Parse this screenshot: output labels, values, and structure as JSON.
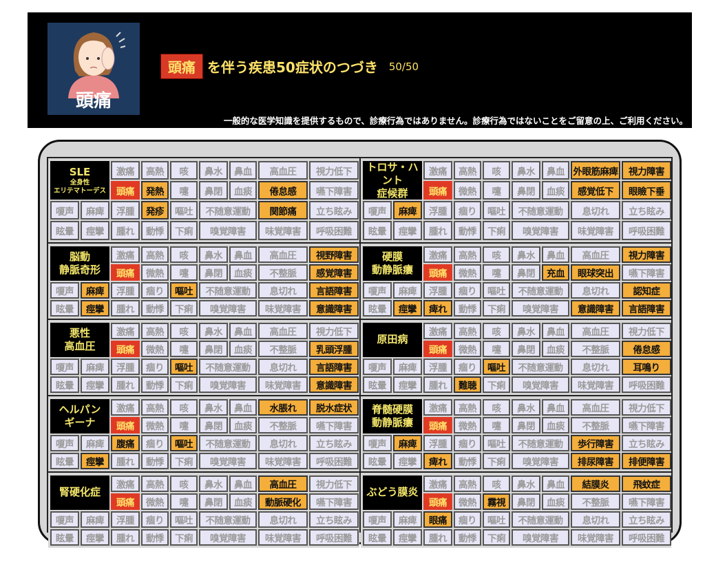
{
  "header": {
    "image_caption": "頭痛",
    "keyword": "頭痛",
    "title": "を伴う疾患50症状のつづき",
    "count": "50/50",
    "disclaimer": "一般的な医学知識を提供するもので、診療行為ではありません。診療行為ではないことをご留意の上、ご利用ください。"
  },
  "colors": {
    "highlight": "#f4ae3c",
    "main_symptom": "#e03a25",
    "label_bg": "#000000",
    "label_text": "#f3e66a",
    "cell_bg": "#e6e6f6"
  },
  "main_symptom": "頭痛",
  "default_symptoms": [
    "激痛",
    "高熱",
    "咳",
    "鼻水",
    "鼻血",
    "高血圧",
    "視力低下",
    "頭痛",
    "微熱",
    "嚏",
    "鼻閉",
    "血痰",
    "不整脈",
    "嚥下障害",
    "嗄声",
    "麻痺",
    "浮腫",
    "痼り",
    "嘔吐",
    "不随意運動",
    "息切れ",
    "立ち眩み",
    "眩暈",
    "痙攣",
    "腫れ",
    "動悸",
    "下痢",
    "嗅覚障害",
    "味覚障害",
    "呼吸困難"
  ],
  "diseases": [
    {
      "name": "SLE",
      "sub": "全身性\nエリテマトーデス",
      "highlights": {
        "微熱": "発熱",
        "痼り": "発疹",
        "不整脈": "倦怠感",
        "息切れ": "関節痛"
      }
    },
    {
      "name": "トロサ・ハント\n症候群",
      "highlights": {
        "麻痺": "麻痺",
        "高血圧": "外眼筋麻痺",
        "視力低下": "視力障害",
        "不整脈": "感覚低下",
        "嚥下障害": "眼瞼下垂"
      }
    },
    {
      "name": "脳動\n静脈奇形",
      "highlights": {
        "麻痺": "麻痺",
        "痙攣": "痙攣",
        "嘔吐": "嘔吐",
        "視力低下": "視野障害",
        "嚥下障害": "感覚障害",
        "立ち眩み": "言語障害",
        "呼吸困難": "意識障害"
      }
    },
    {
      "name": "硬膜\n動静脈瘻",
      "highlights": {
        "痙攣": "痙攣",
        "腫れ": "痺れ",
        "血痰": "充血",
        "不整脈": "眼球突出",
        "視力低下": "視力障害",
        "立ち眩み": "認知症",
        "味覚障害": "意識障害",
        "呼吸困難": "言語障害"
      }
    },
    {
      "name": "悪性\n高血圧",
      "highlights": {
        "嘔吐": "嘔吐",
        "嚥下障害": "乳頭浮腫",
        "立ち眩み": "言語障害",
        "呼吸困難": "意識障害"
      }
    },
    {
      "name": "原田病",
      "highlights": {
        "嘔吐": "嘔吐",
        "動悸": "難聴",
        "嚥下障害": "倦怠感",
        "立ち眩み": "耳鳴り"
      }
    },
    {
      "name": "ヘルパン\nギーナ",
      "highlights": {
        "浮腫": "腹痛",
        "嘔吐": "嘔吐",
        "痙攣": "痙攣",
        "高血圧": "水脹れ",
        "視力低下": "脱水症状"
      }
    },
    {
      "name": "脊髄硬膜\n動静脈瘻",
      "highlights": {
        "麻痺": "麻痺",
        "腫れ": "痺れ",
        "息切れ": "歩行障害",
        "味覚障害": "排尿障害",
        "呼吸困難": "排便障害"
      }
    },
    {
      "name": "腎硬化症",
      "highlights": {
        "高血圧": "高血圧",
        "不整脈": "動脈硬化"
      }
    },
    {
      "name": "ぶどう膜炎",
      "highlights": {
        "嚏": "霧視",
        "浮腫": "眼痛",
        "高血圧": "結膜炎",
        "視力低下": "飛蚊症"
      }
    }
  ]
}
